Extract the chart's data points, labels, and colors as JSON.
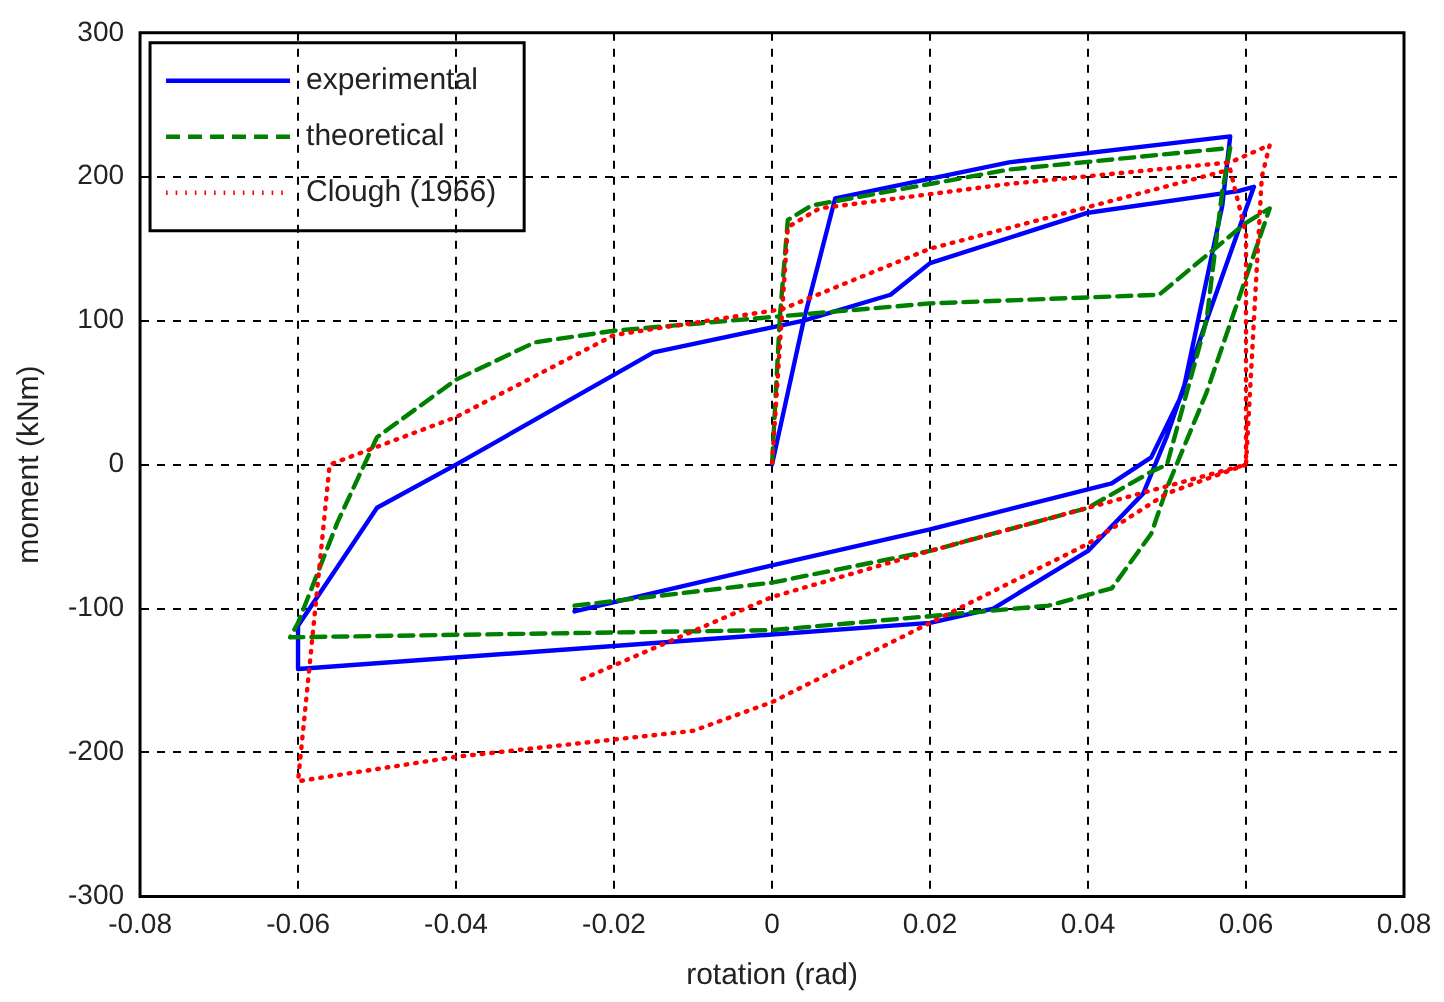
{
  "chart_data": {
    "type": "line",
    "xlabel": "rotation (rad)",
    "ylabel": "moment (kNm)",
    "xlim": [
      -0.08,
      0.08
    ],
    "xticks": [
      -0.08,
      -0.06,
      -0.04,
      -0.02,
      0,
      0.02,
      0.04,
      0.06,
      0.08
    ],
    "ylim": [
      -300,
      300
    ],
    "yticks": [
      -300,
      -200,
      -100,
      0,
      100,
      200,
      300
    ],
    "grid": true,
    "legend": "top left",
    "marker": "none",
    "series": [
      {
        "name": "experimental",
        "color": "#0000ff",
        "line_style": "solid",
        "x": [
          -0.025,
          0,
          0.02,
          0.043,
          0.048,
          0.052,
          0.057,
          0.058,
          0.03,
          0.008,
          0.004,
          -0.015,
          -0.04,
          -0.05,
          -0.06,
          -0.06,
          0.02,
          0.028,
          0.04,
          0.047,
          0.05,
          0.055,
          0.061,
          0.059,
          0.04,
          0.02,
          0.015,
          0.004,
          0
        ],
        "values": [
          -102,
          -70,
          -45,
          -13,
          5,
          50,
          180,
          228,
          210,
          185,
          100,
          78,
          0,
          -30,
          -112,
          -142,
          -110,
          -100,
          -60,
          -20,
          20,
          100,
          193,
          190,
          175,
          140,
          118,
          100,
          0
        ]
      },
      {
        "name": "theoretical",
        "color": "#008000",
        "line_style": "dashed",
        "x": [
          -0.025,
          0,
          0.02,
          0.04,
          0.048,
          0.05,
          0.055,
          0.057,
          0.058,
          0.03,
          0.005,
          0.002,
          0.001,
          -0.02,
          -0.03,
          -0.04,
          -0.05,
          -0.055,
          -0.06,
          -0.061,
          0,
          0.035,
          0.043,
          0.048,
          0.05,
          0.055,
          0.063,
          0.06,
          0.049,
          0.02,
          0.001,
          0
        ],
        "values": [
          -98,
          -82,
          -60,
          -30,
          -5,
          0,
          100,
          190,
          220,
          205,
          180,
          170,
          103,
          93,
          85,
          59,
          19,
          -40,
          -110,
          -120,
          -115,
          -98,
          -86,
          -48,
          -16,
          50,
          178,
          168,
          118,
          112,
          103,
          0
        ]
      },
      {
        "name": "Clough (1966)",
        "color": "#ff0000",
        "line_style": "dotted",
        "x": [
          -0.024,
          0,
          0.02,
          0.05,
          0.06,
          0.062,
          0.063,
          0.058,
          0.03,
          0.006,
          0.002,
          0.0013,
          -0.02,
          -0.04,
          -0.056,
          -0.06,
          -0.04,
          -0.01,
          0,
          0.02,
          0.04,
          0.05,
          0.06,
          0.06,
          0.058,
          0.02,
          0.0013,
          0
        ],
        "values": [
          -149,
          -92,
          -60,
          -15,
          0,
          200,
          222,
          210,
          195,
          178,
          165,
          108,
          90,
          33,
          0,
          -220,
          -203,
          -185,
          -165,
          -110,
          -55,
          -20,
          0,
          160,
          205,
          150,
          108,
          0
        ]
      }
    ]
  }
}
